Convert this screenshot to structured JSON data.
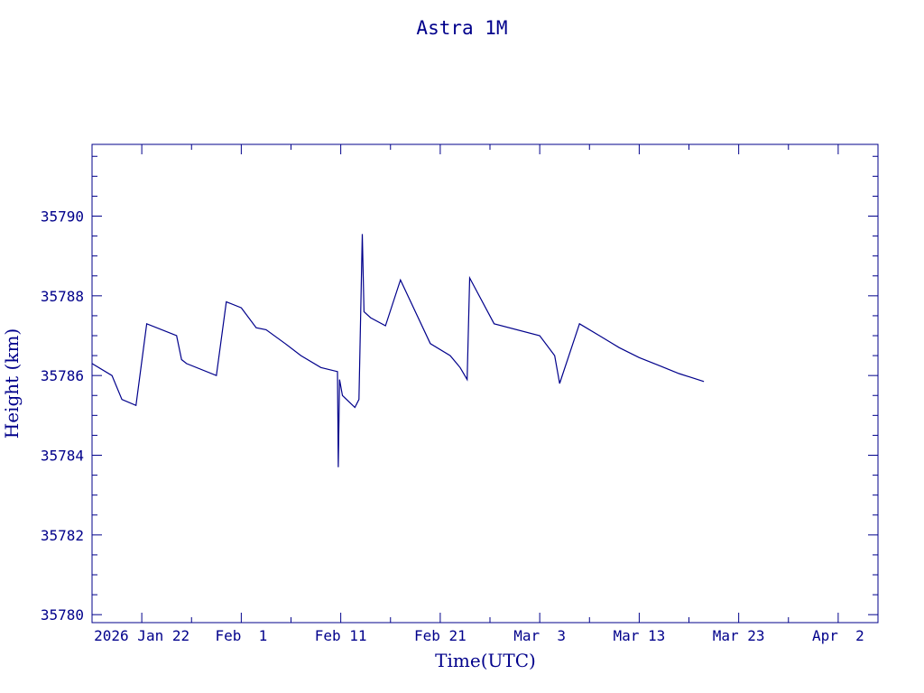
{
  "chart_data": {
    "type": "line",
    "title": "Astra 1M",
    "xlabel": "Time(UTC)",
    "ylabel": "Height (km)",
    "x_tick_labels": [
      "2026 Jan 22",
      "Feb  1",
      "Feb 11",
      "Feb 21",
      "Mar  3",
      "Mar 13",
      "Mar 23",
      "Apr  2"
    ],
    "x_tick_dates": [
      "2026-01-22",
      "2026-02-01",
      "2026-02-11",
      "2026-02-21",
      "2026-03-03",
      "2026-03-13",
      "2026-03-23",
      "2026-04-02"
    ],
    "xlim": [
      "2026-01-17",
      "2026-04-06"
    ],
    "y_tick_labels": [
      "35780",
      "35782",
      "35784",
      "35786",
      "35788",
      "35790"
    ],
    "y_ticks": [
      35780,
      35782,
      35784,
      35786,
      35788,
      35790
    ],
    "ylim": [
      35779.8,
      35791.8
    ],
    "grid": false,
    "color": "#00008b",
    "series": [
      {
        "x": [
          "2026-01-17 00:00",
          "2026-01-19 00:00",
          "2026-01-20 00:00",
          "2026-01-21 10:00",
          "2026-01-22 12:00",
          "2026-01-25 12:00",
          "2026-01-26 00:00",
          "2026-01-26 12:00",
          "2026-01-29 12:00",
          "2026-01-30 12:00",
          "2026-02-01 00:00",
          "2026-02-02 12:00",
          "2026-02-03 12:00",
          "2026-02-05 10:00",
          "2026-02-07 00:00",
          "2026-02-09 00:00",
          "2026-02-10 16:00",
          "2026-02-10 18:00",
          "2026-02-10 21:00",
          "2026-02-11 04:00",
          "2026-02-12 10:00",
          "2026-02-12 20:00",
          "2026-02-13 04:00",
          "2026-02-13 08:00",
          "2026-02-14 00:00",
          "2026-02-15 12:00",
          "2026-02-17 00:00",
          "2026-02-20 00:00",
          "2026-02-22 00:00",
          "2026-02-23 00:00",
          "2026-02-23 17:00",
          "2026-02-23 23:00",
          "2026-02-26 10:00",
          "2026-03-03 00:00",
          "2026-03-04 12:00",
          "2026-03-05 00:00",
          "2026-03-07 00:00",
          "2026-03-09 00:00",
          "2026-03-11 00:00",
          "2026-03-13 00:00",
          "2026-03-15 00:00",
          "2026-03-17 00:00",
          "2026-03-19 12:00"
        ],
        "y": [
          35786.3,
          35786.0,
          35785.4,
          35785.25,
          35787.3,
          35787.0,
          35786.4,
          35786.3,
          35786.0,
          35787.85,
          35787.7,
          35787.2,
          35787.15,
          35786.8,
          35786.5,
          35786.2,
          35786.1,
          35783.7,
          35785.9,
          35785.5,
          35785.2,
          35785.4,
          35789.55,
          35787.6,
          35787.45,
          35787.25,
          35788.4,
          35786.8,
          35786.5,
          35786.2,
          35785.9,
          35788.45,
          35787.3,
          35787.0,
          35786.5,
          35785.8,
          35787.3,
          35787.0,
          35786.7,
          35786.45,
          35786.25,
          35786.05,
          35785.85
        ]
      }
    ]
  }
}
